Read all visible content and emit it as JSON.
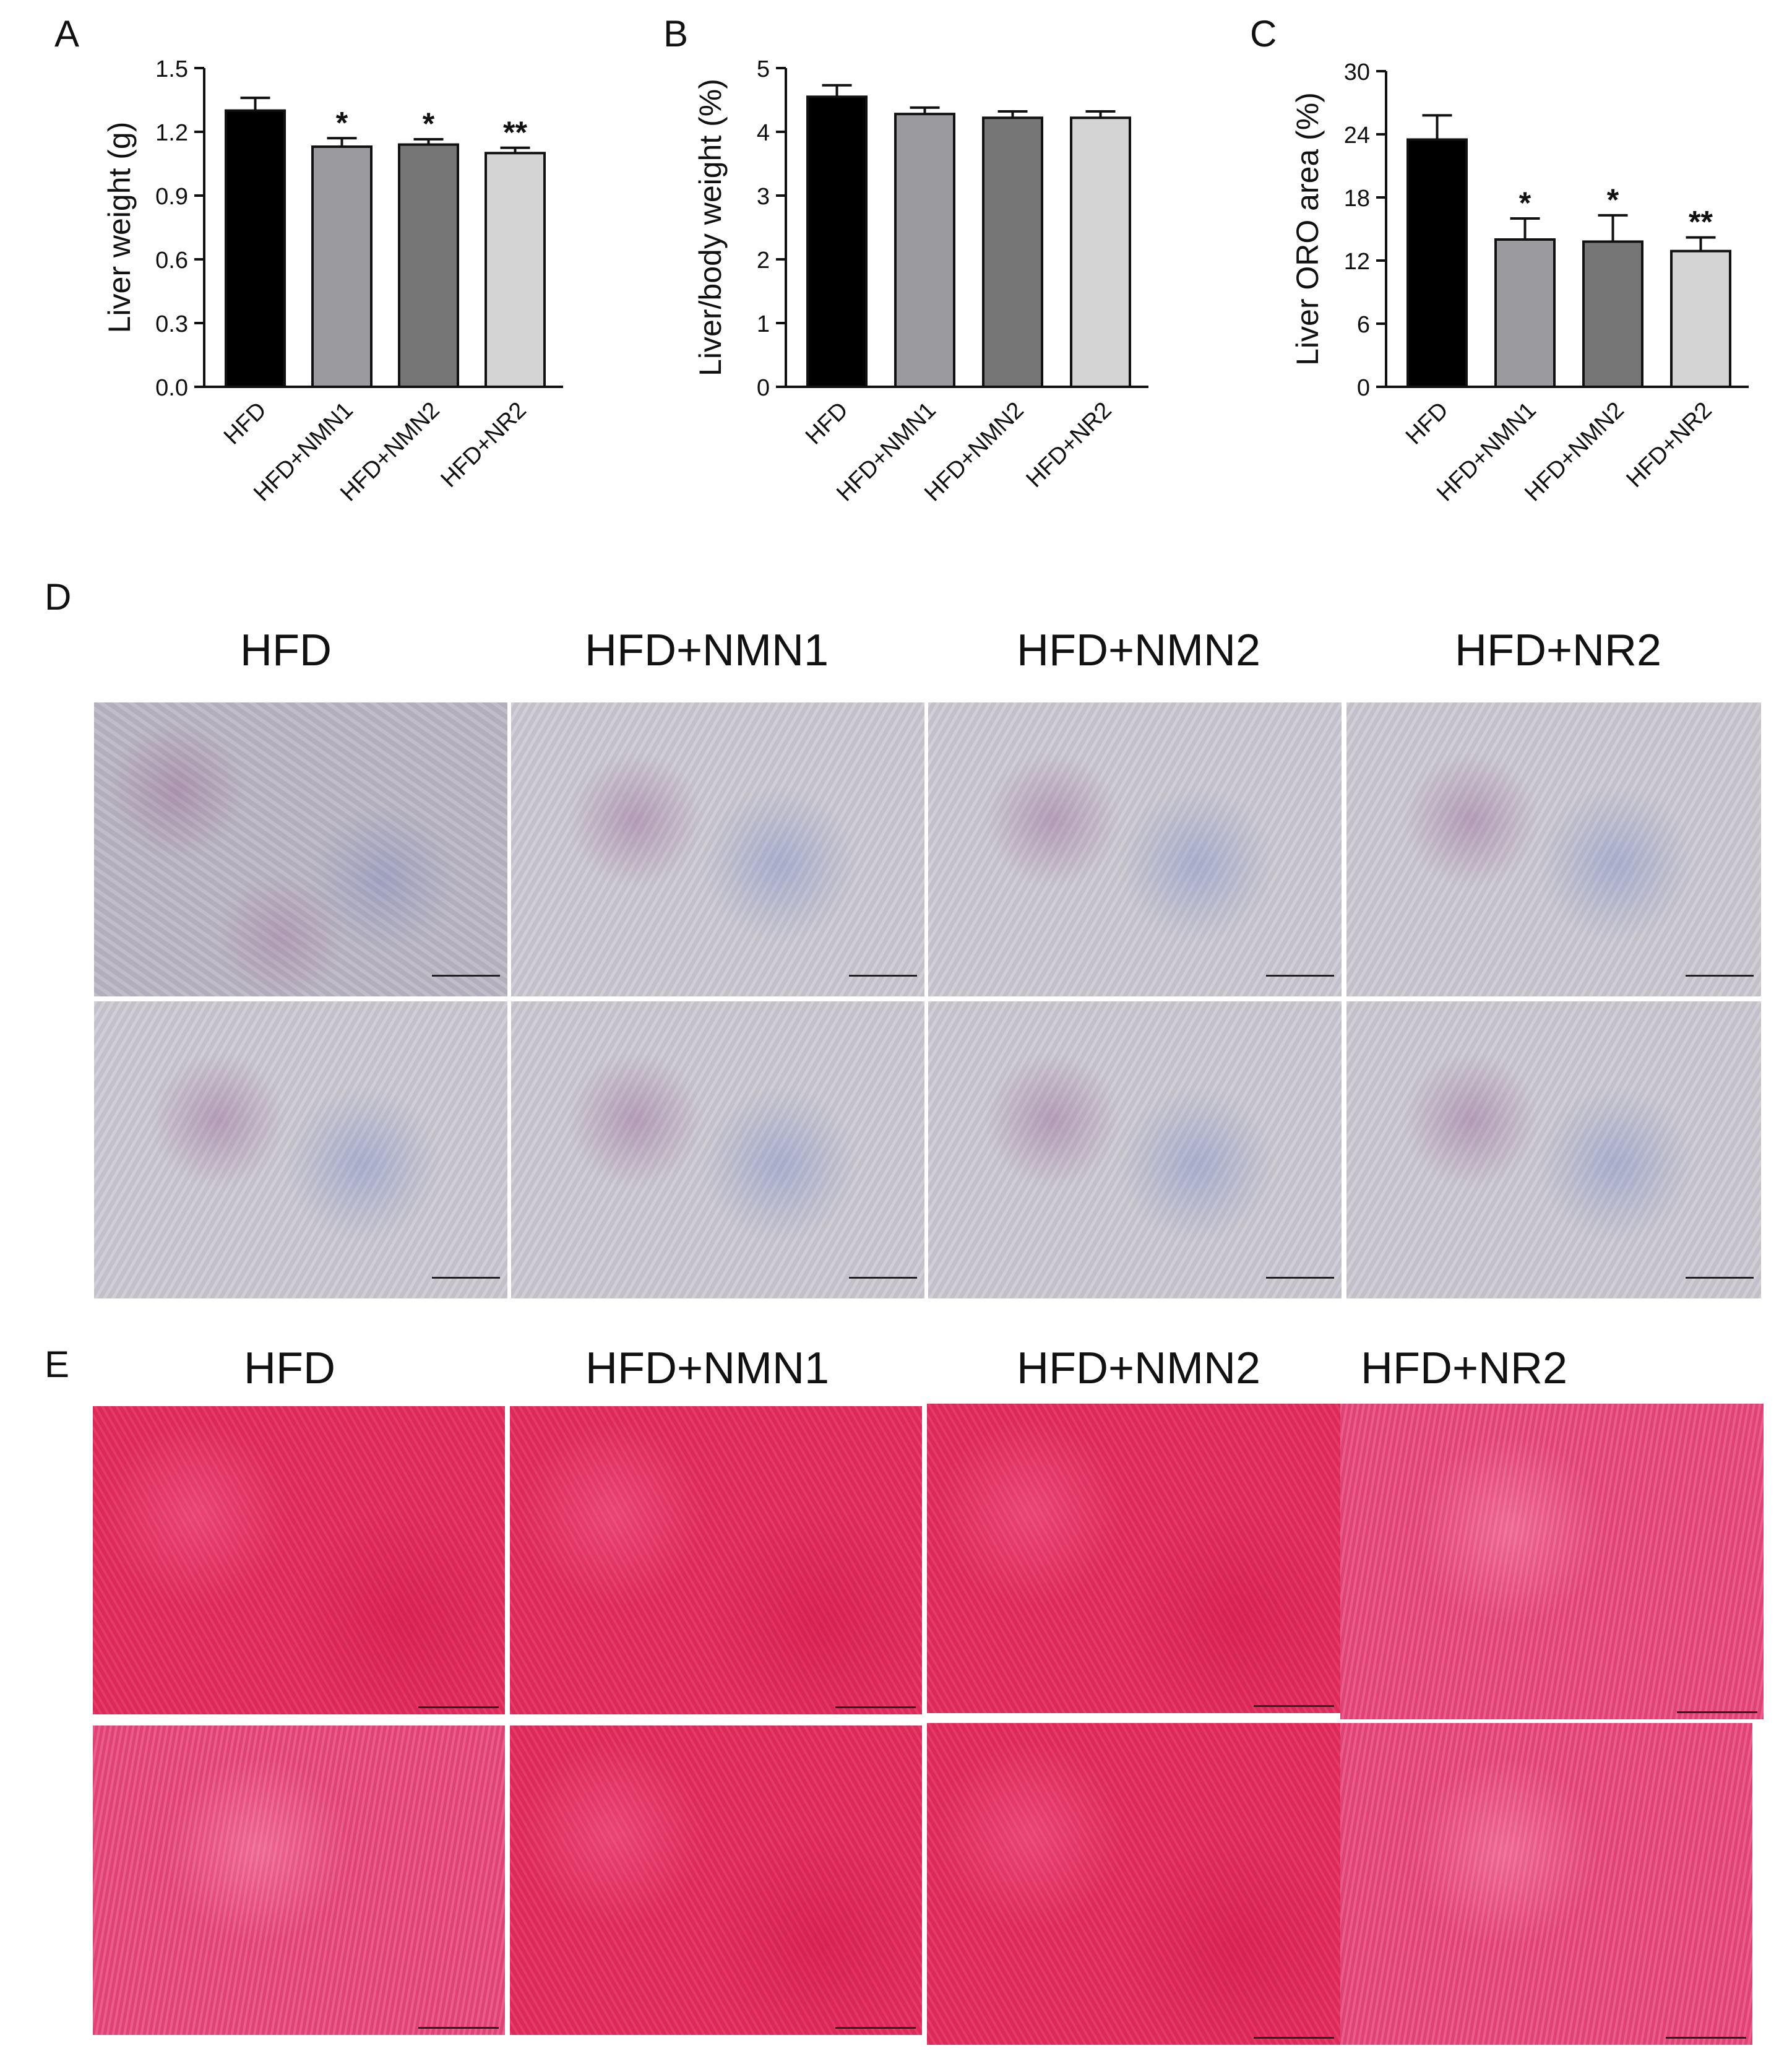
{
  "panels": {
    "A": "A",
    "B": "B",
    "C": "C",
    "D": "D",
    "E": "E"
  },
  "chart_data": [
    {
      "type": "bar",
      "categories": [
        "HFD",
        "HFD+NMN1",
        "HFD+NMN2",
        "HFD+NR2"
      ],
      "values": [
        1.3,
        1.13,
        1.14,
        1.1
      ],
      "errors": [
        0.06,
        0.04,
        0.025,
        0.025
      ],
      "significance": [
        "",
        "*",
        "*",
        "**"
      ],
      "ylabel": "Liver weight (g)",
      "ylim": [
        0,
        1.5
      ],
      "yticks": [
        "0.0",
        "0.3",
        "0.6",
        "0.9",
        "1.2",
        "1.5"
      ],
      "colors": [
        "#000000",
        "#9a9a9f",
        "#767676",
        "#d4d4d4"
      ]
    },
    {
      "type": "bar",
      "categories": [
        "HFD",
        "HFD+NMN1",
        "HFD+NMN2",
        "HFD+NR2"
      ],
      "values": [
        4.55,
        4.28,
        4.22,
        4.22
      ],
      "errors": [
        0.18,
        0.1,
        0.1,
        0.1
      ],
      "significance": [
        "",
        "",
        "",
        ""
      ],
      "ylabel": "Liver/body weight (%)",
      "ylim": [
        0,
        5
      ],
      "yticks": [
        "0",
        "1",
        "2",
        "3",
        "4",
        "5"
      ],
      "colors": [
        "#000000",
        "#9a9a9f",
        "#767676",
        "#d4d4d4"
      ]
    },
    {
      "type": "bar",
      "categories": [
        "HFD",
        "HFD+NMN1",
        "HFD+NMN2",
        "HFD+NR2"
      ],
      "values": [
        23.5,
        14.0,
        13.8,
        12.9
      ],
      "errors": [
        2.3,
        2.0,
        2.5,
        1.3
      ],
      "significance": [
        "",
        "*",
        "*",
        "**"
      ],
      "ylabel": "Liver ORO area (%)",
      "ylim": [
        0,
        30
      ],
      "yticks": [
        "0",
        "6",
        "12",
        "18",
        "24",
        "30"
      ],
      "colors": [
        "#000000",
        "#9a9a9f",
        "#767676",
        "#d4d4d4"
      ]
    }
  ],
  "oro_groups": [
    "HFD",
    "HFD+NMN1",
    "HFD+NMN2",
    "HFD+NR2"
  ],
  "he_groups": [
    "HFD",
    "HFD+NMN1",
    "HFD+NMN2",
    "HFD+NR2"
  ]
}
